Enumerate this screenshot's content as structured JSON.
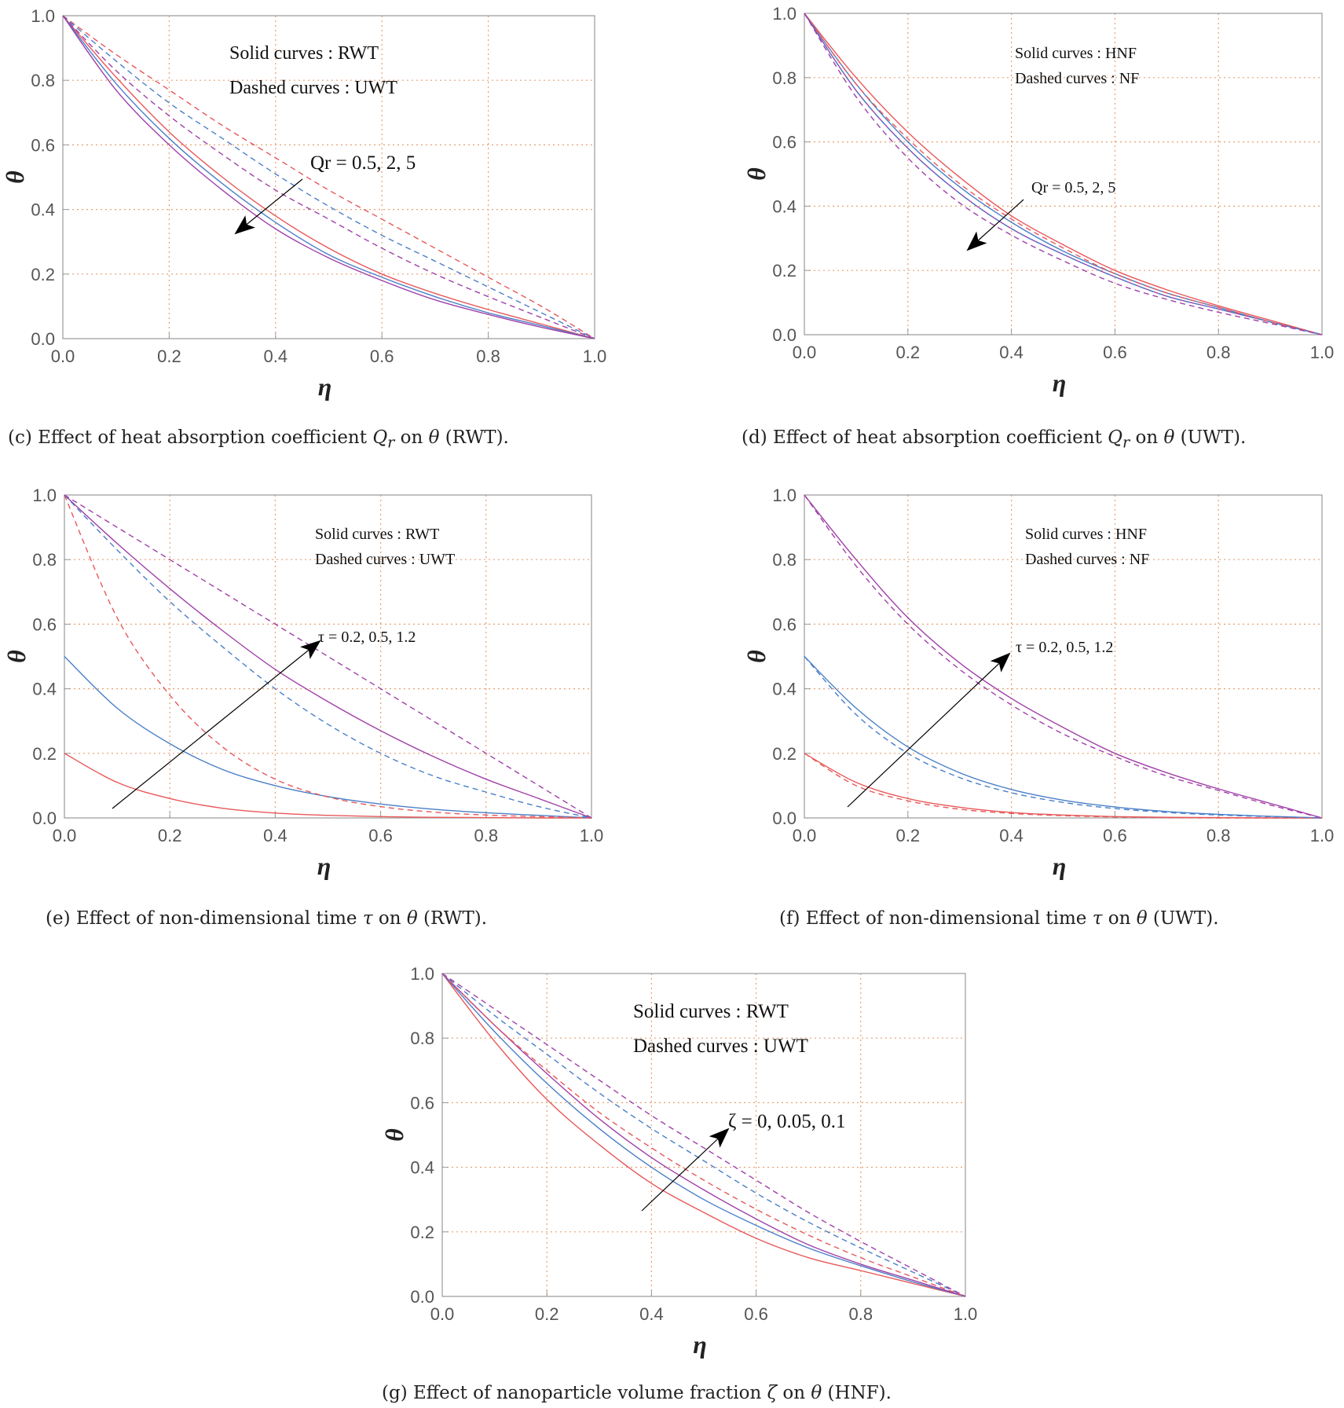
{
  "colors": {
    "red": "#e8585a",
    "blue": "#4a7fc8",
    "purple": "#a040a8",
    "grid": "#e8a070",
    "axis": "#999999"
  },
  "chart_data": [
    {
      "id": "c",
      "type": "line",
      "caption": "(c) Effect of heat absorption coefficient Q_r on θ (RWT).",
      "xlabel": "η",
      "ylabel": "θ",
      "xlim": [
        0,
        1
      ],
      "ylim": [
        0,
        1
      ],
      "xticks": [
        "0.0",
        "0.2",
        "0.4",
        "0.6",
        "0.8",
        "1.0"
      ],
      "yticks": [
        "0.0",
        "0.2",
        "0.4",
        "0.6",
        "0.8",
        "1.0"
      ],
      "legend": [
        "Solid curves : RWT",
        "Dashed curves : UWT"
      ],
      "annotation": "Qr = 0.5, 2, 5",
      "x": [
        0,
        0.1,
        0.2,
        0.3,
        0.4,
        0.5,
        0.6,
        0.7,
        0.8,
        0.9,
        1.0
      ],
      "series": [
        {
          "name": "RWT Qr=0.5",
          "color": "red",
          "dash": false,
          "values": [
            1.0,
            0.81,
            0.64,
            0.5,
            0.38,
            0.28,
            0.2,
            0.14,
            0.09,
            0.045,
            0.0
          ]
        },
        {
          "name": "RWT Qr=2",
          "color": "blue",
          "dash": false,
          "values": [
            1.0,
            0.79,
            0.62,
            0.48,
            0.36,
            0.26,
            0.19,
            0.13,
            0.08,
            0.04,
            0.0
          ]
        },
        {
          "name": "RWT Qr=5",
          "color": "purple",
          "dash": false,
          "values": [
            1.0,
            0.77,
            0.6,
            0.46,
            0.34,
            0.25,
            0.18,
            0.12,
            0.075,
            0.035,
            0.0
          ]
        },
        {
          "name": "UWT Qr=0.5",
          "color": "red",
          "dash": true,
          "values": [
            1.0,
            0.88,
            0.77,
            0.66,
            0.56,
            0.46,
            0.37,
            0.28,
            0.19,
            0.1,
            0.0
          ]
        },
        {
          "name": "UWT Qr=2",
          "color": "blue",
          "dash": true,
          "values": [
            1.0,
            0.86,
            0.73,
            0.62,
            0.51,
            0.41,
            0.32,
            0.24,
            0.16,
            0.08,
            0.0
          ]
        },
        {
          "name": "UWT Qr=5",
          "color": "purple",
          "dash": true,
          "values": [
            1.0,
            0.83,
            0.69,
            0.57,
            0.46,
            0.37,
            0.28,
            0.2,
            0.13,
            0.065,
            0.0
          ]
        }
      ]
    },
    {
      "id": "d",
      "type": "line",
      "caption": "(d) Effect of heat absorption coefficient Q_r on θ (UWT).",
      "xlabel": "η",
      "ylabel": "θ",
      "xlim": [
        0,
        1
      ],
      "ylim": [
        0,
        1
      ],
      "xticks": [
        "0.0",
        "0.2",
        "0.4",
        "0.6",
        "0.8",
        "1.0"
      ],
      "yticks": [
        "0.0",
        "0.2",
        "0.4",
        "0.6",
        "0.8",
        "1.0"
      ],
      "legend": [
        "Solid curves : HNF",
        "Dashed curves : NF"
      ],
      "annotation": "Qr = 0.5, 2, 5",
      "x": [
        0,
        0.1,
        0.2,
        0.3,
        0.4,
        0.5,
        0.6,
        0.7,
        0.8,
        0.9,
        1.0
      ],
      "series": [
        {
          "name": "HNF Qr=0.5",
          "color": "red",
          "dash": false,
          "values": [
            1.0,
            0.8,
            0.63,
            0.49,
            0.37,
            0.28,
            0.2,
            0.14,
            0.09,
            0.045,
            0.0
          ]
        },
        {
          "name": "HNF Qr=2",
          "color": "blue",
          "dash": false,
          "values": [
            1.0,
            0.78,
            0.6,
            0.46,
            0.35,
            0.26,
            0.19,
            0.13,
            0.085,
            0.04,
            0.0
          ]
        },
        {
          "name": "HNF Qr=5",
          "color": "purple",
          "dash": false,
          "values": [
            1.0,
            0.76,
            0.58,
            0.44,
            0.33,
            0.25,
            0.18,
            0.12,
            0.08,
            0.04,
            0.0
          ]
        },
        {
          "name": "NF Qr=0.5",
          "color": "red",
          "dash": true,
          "values": [
            1.0,
            0.78,
            0.61,
            0.47,
            0.36,
            0.27,
            0.19,
            0.13,
            0.085,
            0.04,
            0.0
          ]
        },
        {
          "name": "NF Qr=2",
          "color": "blue",
          "dash": true,
          "values": [
            1.0,
            0.76,
            0.58,
            0.44,
            0.33,
            0.25,
            0.18,
            0.12,
            0.08,
            0.04,
            0.0
          ]
        },
        {
          "name": "NF Qr=5",
          "color": "purple",
          "dash": true,
          "values": [
            1.0,
            0.74,
            0.55,
            0.41,
            0.31,
            0.23,
            0.16,
            0.11,
            0.07,
            0.035,
            0.0
          ]
        }
      ]
    },
    {
      "id": "e",
      "type": "line",
      "caption": "(e) Effect of non-dimensional time τ on θ (RWT).",
      "xlabel": "η",
      "ylabel": "θ",
      "xlim": [
        0,
        1
      ],
      "ylim": [
        0,
        1
      ],
      "xticks": [
        "0.0",
        "0.2",
        "0.4",
        "0.6",
        "0.8",
        "1.0"
      ],
      "yticks": [
        "0.0",
        "0.2",
        "0.4",
        "0.6",
        "0.8",
        "1.0"
      ],
      "legend": [
        "Solid curves : RWT",
        "Dashed curves : UWT"
      ],
      "annotation": "τ = 0.2, 0.5, 1.2",
      "x": [
        0,
        0.1,
        0.2,
        0.3,
        0.4,
        0.5,
        0.6,
        0.7,
        0.8,
        0.9,
        1.0
      ],
      "series": [
        {
          "name": "RWT τ=0.2",
          "color": "red",
          "dash": false,
          "values": [
            0.2,
            0.11,
            0.06,
            0.03,
            0.015,
            0.008,
            0.004,
            0.002,
            0.001,
            0.0,
            0.0
          ]
        },
        {
          "name": "RWT τ=0.5",
          "color": "blue",
          "dash": false,
          "values": [
            0.5,
            0.34,
            0.23,
            0.15,
            0.1,
            0.066,
            0.043,
            0.027,
            0.016,
            0.008,
            0.0
          ]
        },
        {
          "name": "RWT τ=1.2",
          "color": "purple",
          "dash": false,
          "values": [
            1.0,
            0.85,
            0.71,
            0.58,
            0.46,
            0.36,
            0.27,
            0.19,
            0.12,
            0.06,
            0.0
          ]
        },
        {
          "name": "UWT τ=0.2",
          "color": "red",
          "dash": true,
          "values": [
            1.0,
            0.62,
            0.38,
            0.22,
            0.12,
            0.065,
            0.035,
            0.018,
            0.009,
            0.004,
            0.0
          ]
        },
        {
          "name": "UWT τ=0.5",
          "color": "blue",
          "dash": true,
          "values": [
            1.0,
            0.83,
            0.67,
            0.53,
            0.4,
            0.29,
            0.2,
            0.13,
            0.08,
            0.035,
            0.0
          ]
        },
        {
          "name": "UWT τ=1.2",
          "color": "purple",
          "dash": true,
          "values": [
            1.0,
            0.9,
            0.8,
            0.7,
            0.6,
            0.5,
            0.4,
            0.3,
            0.2,
            0.1,
            0.0
          ]
        }
      ]
    },
    {
      "id": "f",
      "type": "line",
      "caption": "(f) Effect of non-dimensional time τ on θ (UWT).",
      "xlabel": "η",
      "ylabel": "θ",
      "xlim": [
        0,
        1
      ],
      "ylim": [
        0,
        1
      ],
      "xticks": [
        "0.0",
        "0.2",
        "0.4",
        "0.6",
        "0.8",
        "1.0"
      ],
      "yticks": [
        "0.0",
        "0.2",
        "0.4",
        "0.6",
        "0.8",
        "1.0"
      ],
      "legend": [
        "Solid curves : HNF",
        "Dashed curves : NF"
      ],
      "annotation": "τ = 0.2, 0.5, 1.2",
      "x": [
        0,
        0.1,
        0.2,
        0.3,
        0.4,
        0.5,
        0.6,
        0.7,
        0.8,
        0.9,
        1.0
      ],
      "series": [
        {
          "name": "HNF τ=0.2",
          "color": "red",
          "dash": false,
          "values": [
            0.2,
            0.11,
            0.06,
            0.033,
            0.017,
            0.009,
            0.004,
            0.002,
            0.001,
            0.0,
            0.0
          ]
        },
        {
          "name": "HNF τ=0.5",
          "color": "blue",
          "dash": false,
          "values": [
            0.5,
            0.34,
            0.22,
            0.14,
            0.088,
            0.055,
            0.034,
            0.02,
            0.011,
            0.005,
            0.0
          ]
        },
        {
          "name": "HNF τ=1.2",
          "color": "purple",
          "dash": false,
          "values": [
            1.0,
            0.8,
            0.62,
            0.48,
            0.37,
            0.28,
            0.2,
            0.14,
            0.09,
            0.045,
            0.0
          ]
        },
        {
          "name": "NF τ=0.2",
          "color": "red",
          "dash": true,
          "values": [
            0.2,
            0.1,
            0.053,
            0.027,
            0.014,
            0.007,
            0.003,
            0.001,
            0.0,
            0.0,
            0.0
          ]
        },
        {
          "name": "NF τ=0.5",
          "color": "blue",
          "dash": true,
          "values": [
            0.5,
            0.32,
            0.2,
            0.125,
            0.078,
            0.048,
            0.029,
            0.017,
            0.009,
            0.004,
            0.0
          ]
        },
        {
          "name": "NF τ=1.2",
          "color": "purple",
          "dash": true,
          "values": [
            1.0,
            0.78,
            0.6,
            0.46,
            0.35,
            0.26,
            0.19,
            0.13,
            0.085,
            0.04,
            0.0
          ]
        }
      ]
    },
    {
      "id": "g",
      "type": "line",
      "caption": "(g) Effect of nanoparticle volume fraction ζ on θ (HNF).",
      "xlabel": "η",
      "ylabel": "θ",
      "xlim": [
        0,
        1
      ],
      "ylim": [
        0,
        1
      ],
      "xticks": [
        "0.0",
        "0.2",
        "0.4",
        "0.6",
        "0.8",
        "1.0"
      ],
      "yticks": [
        "0.0",
        "0.2",
        "0.4",
        "0.6",
        "0.8",
        "1.0"
      ],
      "legend": [
        "Solid curves : RWT",
        "Dashed curves : UWT"
      ],
      "annotation": "ζ = 0, 0.05, 0.1",
      "x": [
        0,
        0.1,
        0.2,
        0.3,
        0.4,
        0.5,
        0.6,
        0.7,
        0.8,
        0.9,
        1.0
      ],
      "series": [
        {
          "name": "RWT ζ=0",
          "color": "red",
          "dash": false,
          "values": [
            1.0,
            0.79,
            0.61,
            0.47,
            0.35,
            0.26,
            0.18,
            0.12,
            0.08,
            0.04,
            0.0
          ]
        },
        {
          "name": "RWT ζ=0.05",
          "color": "blue",
          "dash": false,
          "values": [
            1.0,
            0.82,
            0.66,
            0.52,
            0.4,
            0.3,
            0.22,
            0.15,
            0.095,
            0.045,
            0.0
          ]
        },
        {
          "name": "RWT ζ=0.1",
          "color": "purple",
          "dash": false,
          "values": [
            1.0,
            0.84,
            0.69,
            0.55,
            0.43,
            0.33,
            0.24,
            0.16,
            0.1,
            0.05,
            0.0
          ]
        },
        {
          "name": "UWT ζ=0",
          "color": "red",
          "dash": true,
          "values": [
            1.0,
            0.84,
            0.7,
            0.57,
            0.46,
            0.36,
            0.27,
            0.19,
            0.12,
            0.06,
            0.0
          ]
        },
        {
          "name": "UWT ζ=0.05",
          "color": "blue",
          "dash": true,
          "values": [
            1.0,
            0.87,
            0.75,
            0.63,
            0.52,
            0.42,
            0.32,
            0.23,
            0.15,
            0.075,
            0.0
          ]
        },
        {
          "name": "UWT ζ=0.1",
          "color": "purple",
          "dash": true,
          "values": [
            1.0,
            0.89,
            0.78,
            0.67,
            0.56,
            0.46,
            0.36,
            0.26,
            0.17,
            0.085,
            0.0
          ]
        }
      ]
    }
  ]
}
